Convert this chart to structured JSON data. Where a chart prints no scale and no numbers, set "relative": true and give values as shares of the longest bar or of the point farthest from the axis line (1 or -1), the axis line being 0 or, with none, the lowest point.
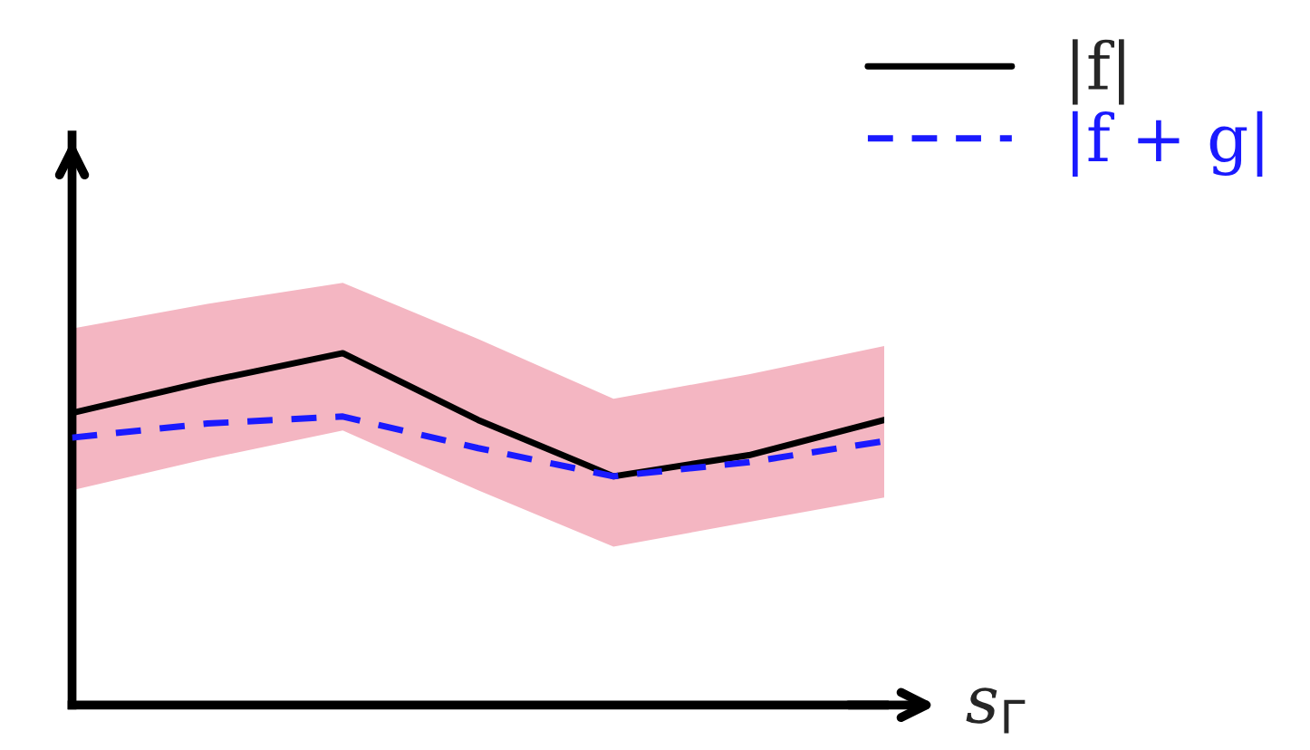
{
  "chart_data": {
    "type": "line",
    "relative": true,
    "xlabel": "s$_{Γ}$",
    "categories": [
      null,
      null,
      null,
      null,
      null,
      null,
      null
    ],
    "series": [
      {
        "name": "|f|",
        "color": "#000000",
        "line_style": "solid",
        "values": [
          0.83,
          0.92,
          1.0,
          0.81,
          0.65,
          0.71,
          0.81
        ],
        "lower": [
          0.61,
          0.7,
          0.78,
          0.61,
          0.45,
          0.52,
          0.59
        ],
        "upper": [
          1.07,
          1.14,
          1.2,
          1.04,
          0.87,
          0.94,
          1.02
        ]
      },
      {
        "name": "|f + g|",
        "color": "#1a1aff",
        "line_style": "dashed",
        "values": [
          0.76,
          0.8,
          0.82,
          0.73,
          0.65,
          0.69,
          0.75
        ]
      }
    ],
    "legend": "top right",
    "marker": "none"
  }
}
